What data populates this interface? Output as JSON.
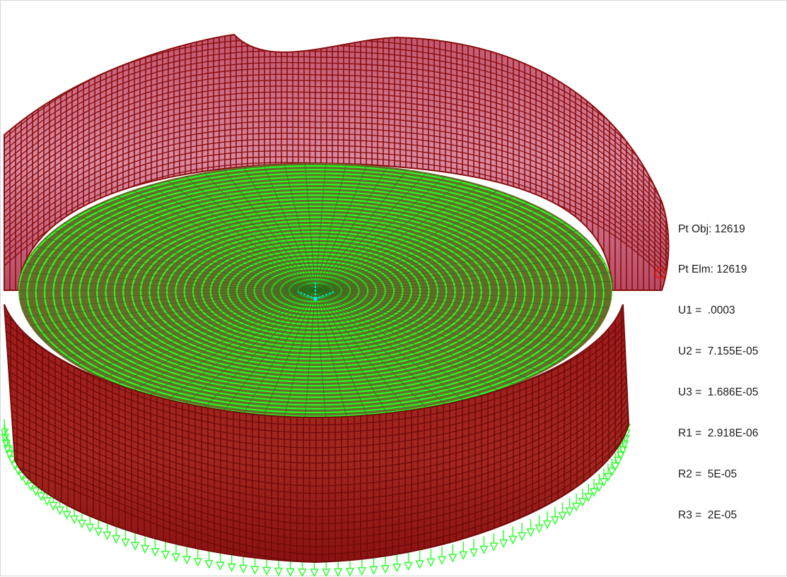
{
  "point_info": {
    "pt_obj": "Pt Obj: 12619",
    "pt_elm": "Pt Elm: 12619",
    "u1": "U1 =  .0003",
    "u2": "U2 =  7.155E-05",
    "u3": "U3 =  1.686E-05",
    "r1": "R1 =  2.918E-06",
    "r2": "R2 =  5E-05",
    "r3": "R3 =  2E-05"
  },
  "colors": {
    "shell_mesh": "#8b0e0e",
    "shell_fill_light": "#e7b6c6",
    "shell_fill_dark": "#a01818",
    "base_mesh": "#22ff22",
    "restraints": "#33ff33",
    "axes": "#00e5e5",
    "selection_marker": "#e02020"
  },
  "icons": {
    "local_axes": "local-axes-icon",
    "selected_point": "selected-point-marker"
  }
}
